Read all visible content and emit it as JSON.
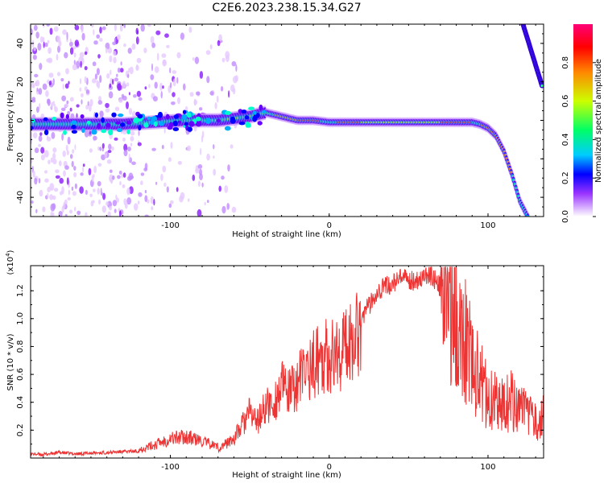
{
  "title": "C2E6.2023.238.15.34.G27",
  "chart_data": [
    {
      "type": "heatmap",
      "xlabel": "Height of straight line (km)",
      "ylabel": "Frequency (Hz)",
      "xlim": [
        -188,
        135
      ],
      "ylim": [
        -50,
        50
      ],
      "xticks": [
        -100,
        0,
        100
      ],
      "xtick_labels": [
        "-100",
        "0",
        "100"
      ],
      "yticks": [
        -40,
        -20,
        0,
        20,
        40
      ],
      "ytick_labels": [
        "-40",
        "-20",
        "0",
        "20",
        "40"
      ],
      "colorbar": {
        "label": "Normalized spectral amplitude",
        "range": [
          0,
          1
        ],
        "ticks": [
          0.0,
          0.2,
          0.4,
          0.6,
          0.8
        ],
        "tick_labels": [
          "0.0",
          "0.2",
          "0.4",
          "0.6",
          "0.8"
        ],
        "colormap": "rainbow",
        "colors": [
          "#ffffff",
          "#8800ff",
          "#0000ff",
          "#00ccff",
          "#00ff66",
          "#ccff00",
          "#ff8800",
          "#ff0000",
          "#ff0077"
        ]
      },
      "ridge": {
        "x": [
          -188,
          -160,
          -130,
          -110,
          -90,
          -70,
          -50,
          -40,
          -30,
          -20,
          -10,
          0,
          20,
          40,
          60,
          80,
          90,
          95,
          100,
          105,
          110,
          115,
          120,
          125
        ],
        "y": [
          -2,
          -2,
          -2,
          -1,
          0,
          0,
          2,
          4,
          2,
          0,
          0,
          -1,
          -1,
          -1,
          -1,
          -1,
          -1,
          -2,
          -4,
          -8,
          -16,
          -28,
          -42,
          -50
        ]
      },
      "upper_branch": {
        "x": [
          122,
          125,
          128,
          131,
          134
        ],
        "y": [
          50,
          42,
          34,
          26,
          18
        ]
      }
    },
    {
      "type": "line",
      "xlabel": "Height of straight line (km)",
      "ylabel": "SNR (10 * v/v)",
      "exponent_label": "(x10",
      "exponent_sup": "4",
      "exponent_close": ")",
      "xlim": [
        -188,
        135
      ],
      "ylim": [
        0,
        13800
      ],
      "xticks": [
        -100,
        0,
        100
      ],
      "xtick_labels": [
        "-100",
        "0",
        "100"
      ],
      "yticks": [
        2000,
        4000,
        6000,
        8000,
        10000,
        12000
      ],
      "ytick_labels": [
        "0.2",
        "0.4",
        "0.6",
        "0.8",
        "1.0",
        "1.2"
      ],
      "series": [
        {
          "color": "#ee3333",
          "x": [
            -188,
            -180,
            -170,
            -160,
            -150,
            -140,
            -130,
            -120,
            -110,
            -100,
            -90,
            -80,
            -70,
            -60,
            -55,
            -50,
            -45,
            -40,
            -35,
            -30,
            -25,
            -20,
            -15,
            -10,
            -5,
            0,
            5,
            10,
            15,
            20,
            25,
            30,
            35,
            40,
            45,
            50,
            55,
            60,
            65,
            70,
            75,
            80,
            85,
            90,
            95,
            100,
            105,
            110,
            115,
            120,
            125,
            130,
            135
          ],
          "y": [
            300,
            250,
            400,
            300,
            350,
            400,
            450,
            500,
            800,
            1200,
            1300,
            1000,
            700,
            1500,
            2500,
            3500,
            2800,
            4000,
            4200,
            5500,
            5000,
            5800,
            6800,
            7200,
            8000,
            7800,
            8000,
            8500,
            9500,
            10300,
            11200,
            12300,
            12600,
            12800,
            13200,
            13000,
            13100,
            13300,
            13400,
            12500,
            11500,
            10000,
            9000,
            7000,
            5500,
            4500,
            4000,
            3800,
            4200,
            3500,
            3000,
            2500,
            3000
          ]
        }
      ]
    }
  ]
}
